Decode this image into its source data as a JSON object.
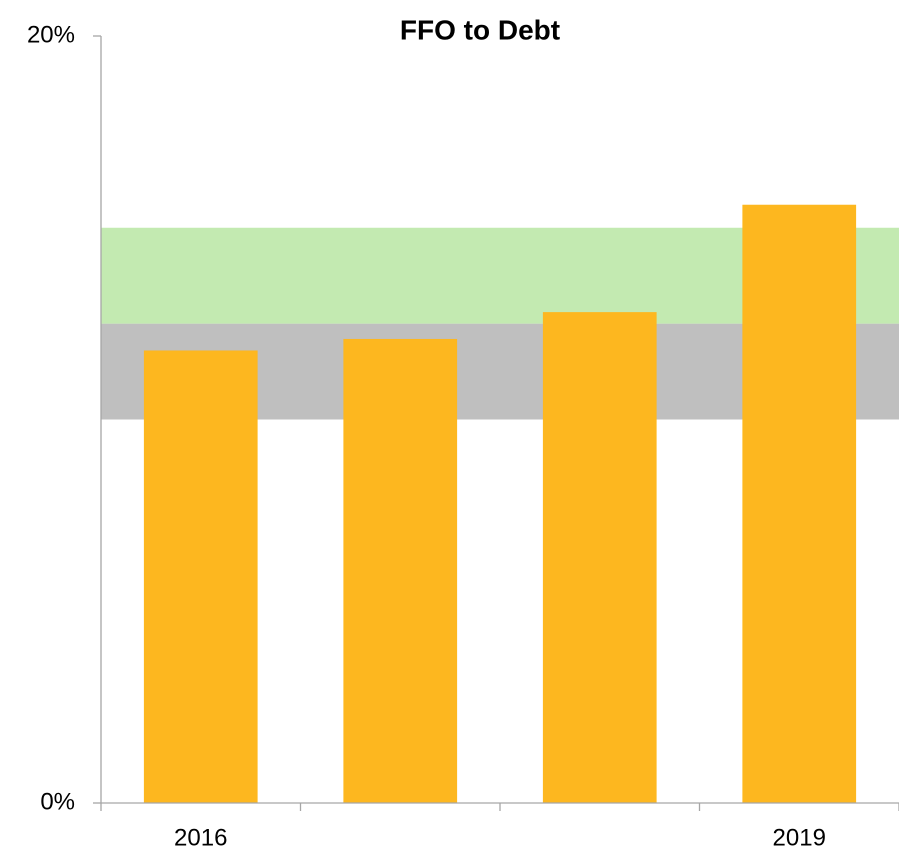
{
  "chart_data": {
    "type": "bar",
    "title": "FFO to Debt",
    "categories": [
      "2016",
      null,
      null,
      "2019"
    ],
    "values": [
      11.8,
      12.1,
      12.8,
      15.6
    ],
    "color": "#fdb71f",
    "bands": [
      {
        "from": 10,
        "to": 12.5,
        "color": "#bfbfbf"
      },
      {
        "from": 12.5,
        "to": 15,
        "color": "#c3eab1"
      }
    ],
    "ylim": [
      0,
      20
    ],
    "yticks": [
      {
        "value": 0,
        "label": "0%"
      },
      {
        "value": 20,
        "label": "20%"
      }
    ],
    "grid": false
  }
}
